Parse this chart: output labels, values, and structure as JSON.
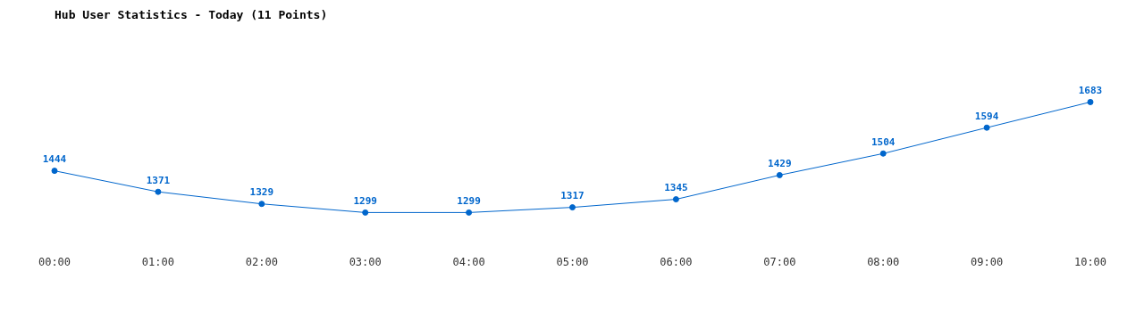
{
  "chart_data": {
    "type": "line",
    "title": "Hub User Statistics - Today (11 Points)",
    "categories": [
      "00:00",
      "01:00",
      "02:00",
      "03:00",
      "04:00",
      "05:00",
      "06:00",
      "07:00",
      "08:00",
      "09:00",
      "10:00"
    ],
    "series": [
      {
        "color": "#0066cc",
        "values": [
          1444,
          1371,
          1329,
          1299,
          1299,
          1317,
          1345,
          1429,
          1504,
          1594,
          1683
        ]
      }
    ],
    "data_labels": true,
    "marker": "circle",
    "line_style": "solid",
    "grid": false,
    "legend": false,
    "tick_labels": "x"
  }
}
